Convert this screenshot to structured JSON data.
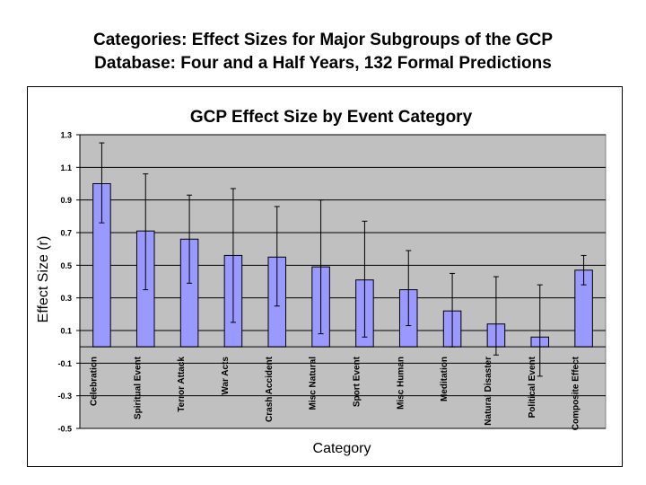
{
  "page": {
    "title_line1": "Categories: Effect Sizes for Major Subgroups of the GCP",
    "title_line2": "Database: Four and a Half Years, 132 Formal Predictions"
  },
  "colors": {
    "bar_fill": "#9999ff",
    "bar_stroke": "#000000",
    "plot_background": "#c0c0c0",
    "gridline": "#000000"
  },
  "chart_data": {
    "type": "bar",
    "title": "GCP Effect Size by Event Category",
    "xlabel": "Category",
    "ylabel": "Effect Size (r)",
    "ylim": [
      -0.5,
      1.3
    ],
    "yticks": [
      1.3,
      1.1,
      0.9,
      0.7,
      0.5,
      0.3,
      0.1,
      -0.1,
      -0.3,
      -0.5
    ],
    "ytick_labels": [
      "1.3",
      "1.1",
      "0.9",
      "0.7",
      "0.5",
      "0.3",
      "0.1",
      "-0.1",
      "-0.3",
      "-0.5"
    ],
    "grid": true,
    "legend": false,
    "categories": [
      "Celebration",
      "Spiritual Event",
      "Terror Attack",
      "War Acts",
      "Crash Accident",
      "Misc Natural",
      "Sport Event",
      "Misc Human",
      "Meditation",
      "Natural Disaster",
      "Political Event",
      "Composite Effect"
    ],
    "values": [
      1.0,
      0.71,
      0.66,
      0.56,
      0.55,
      0.49,
      0.41,
      0.35,
      0.22,
      0.14,
      0.06,
      0.47
    ],
    "error_low": [
      0.76,
      0.35,
      0.39,
      0.15,
      0.25,
      0.08,
      0.06,
      0.13,
      0.0,
      -0.05,
      -0.18,
      0.38
    ],
    "error_high": [
      1.25,
      1.06,
      0.93,
      0.97,
      0.86,
      0.9,
      0.77,
      0.59,
      0.45,
      0.43,
      0.38,
      0.56
    ]
  }
}
